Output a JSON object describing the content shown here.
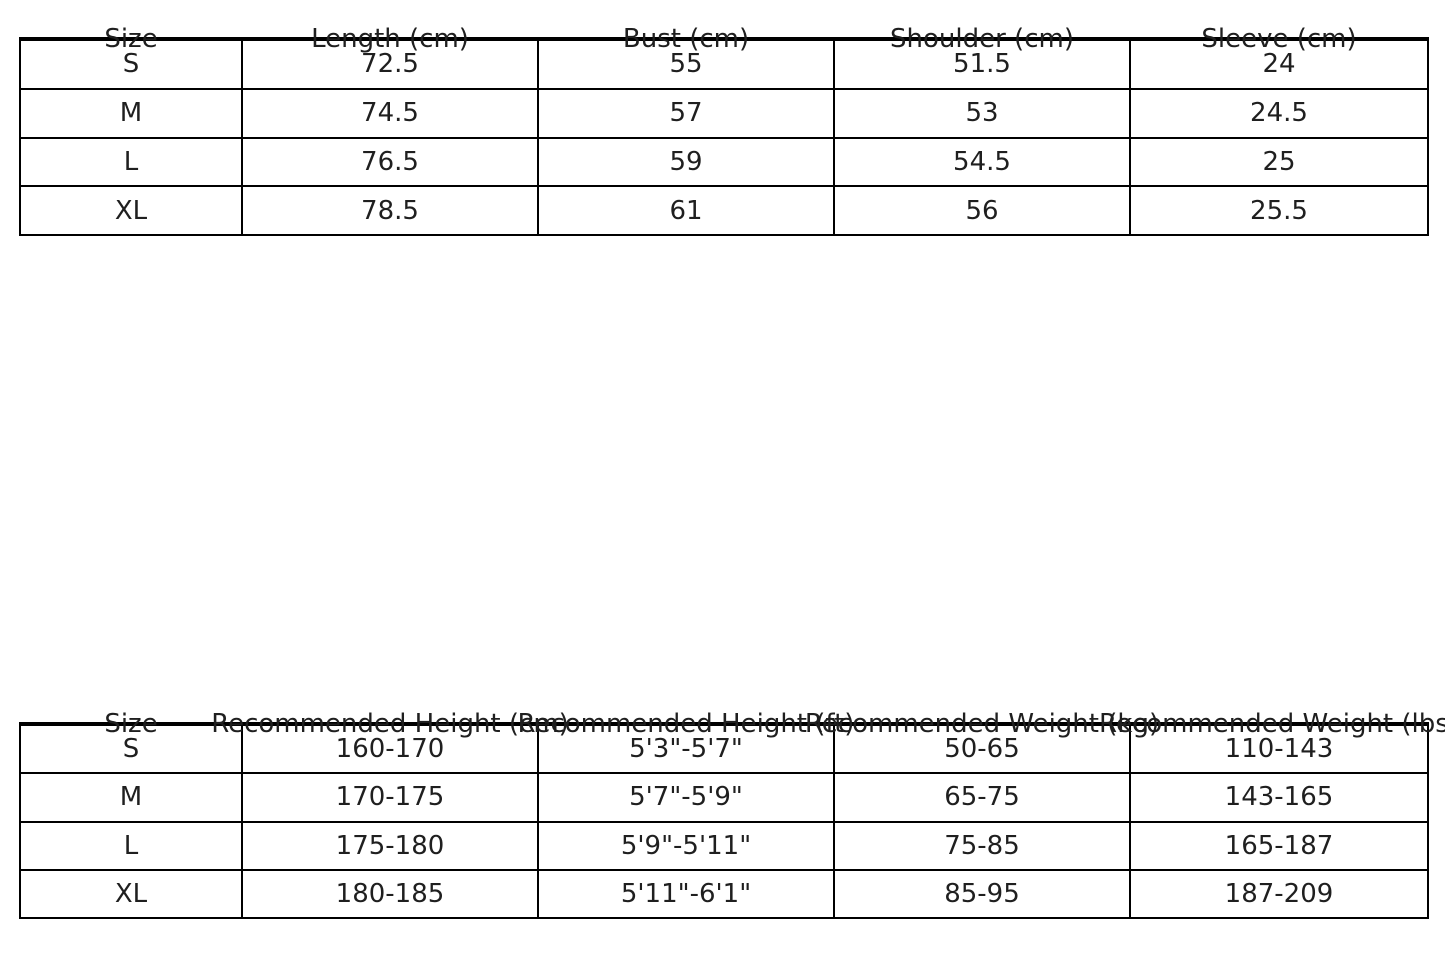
{
  "colors": {
    "background": "#ffffff",
    "cell_background": "#ffffff",
    "border": "#000000",
    "text": "#1f1f1f"
  },
  "chart_data": [
    {
      "type": "table",
      "name": "garment-measurements",
      "columns": [
        "Size",
        "Length (cm)",
        "Bust (cm)",
        "Shoulder (cm)",
        "Sleeve (cm)"
      ],
      "rows": [
        [
          "S",
          "72.5",
          "55",
          "51.5",
          "24"
        ],
        [
          "M",
          "74.5",
          "57",
          "53",
          "24.5"
        ],
        [
          "L",
          "76.5",
          "59",
          "54.5",
          "25"
        ],
        [
          "XL",
          "78.5",
          "61",
          "56",
          "25.5"
        ]
      ],
      "layout_hints": {
        "header_overflow": false
      }
    },
    {
      "type": "table",
      "name": "recommended-fit",
      "columns": [
        "Size",
        "Recommended Height (cm)",
        "Recommended Height (ft)",
        "Recommended Weight (kg)",
        "Recommended Weight (lbs)"
      ],
      "rows": [
        [
          "S",
          "160-170",
          "5'3\"-5'7\"",
          "50-65",
          "110-143"
        ],
        [
          "M",
          "170-175",
          "5'7\"-5'9\"",
          "65-75",
          "143-165"
        ],
        [
          "L",
          "175-180",
          "5'9\"-5'11\"",
          "75-85",
          "165-187"
        ],
        [
          "XL",
          "180-185",
          "5'11\"-6'1\"",
          "85-95",
          "187-209"
        ]
      ],
      "layout_hints": {
        "header_overflow": true,
        "last_header_clipped_at_right_edge": true
      }
    }
  ]
}
